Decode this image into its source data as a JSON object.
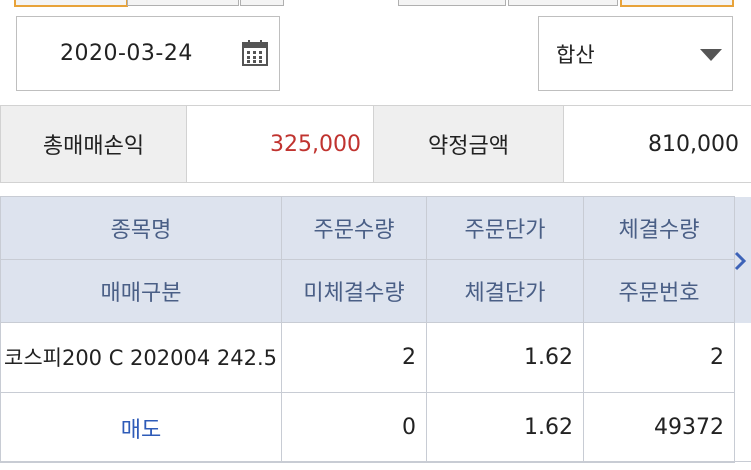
{
  "filter": {
    "date": "2020-03-24",
    "mode_selected": "합산",
    "icons": {
      "calendar": "calendar-icon",
      "dropdown": "chevron-down-icon"
    }
  },
  "summary": {
    "total_pnl_label": "총매매손익",
    "total_pnl_value": "325,000",
    "contract_amount_label": "약정금액",
    "contract_amount_value": "810,000"
  },
  "grid": {
    "headers_row1": [
      "종목명",
      "주문수량",
      "주문단가",
      "체결수량"
    ],
    "headers_row2": [
      "매매구분",
      "미체결수량",
      "체결단가",
      "주문번호"
    ],
    "rows": [
      {
        "name": "코스피200 C 202004 242.5",
        "order_qty": "2",
        "order_price": "1.62",
        "filled_qty": "2",
        "side": "매도",
        "unfilled_qty": "0",
        "filled_price": "1.62",
        "order_no": "49372"
      }
    ],
    "scroll_icon": "chevron-right-icon"
  },
  "colors": {
    "profit": "#c0332f",
    "header_bg": "#dde3ee",
    "header_text": "#4a5f86",
    "side_sell": "#2e5bb8",
    "accent_tab": "#e8a33a"
  }
}
